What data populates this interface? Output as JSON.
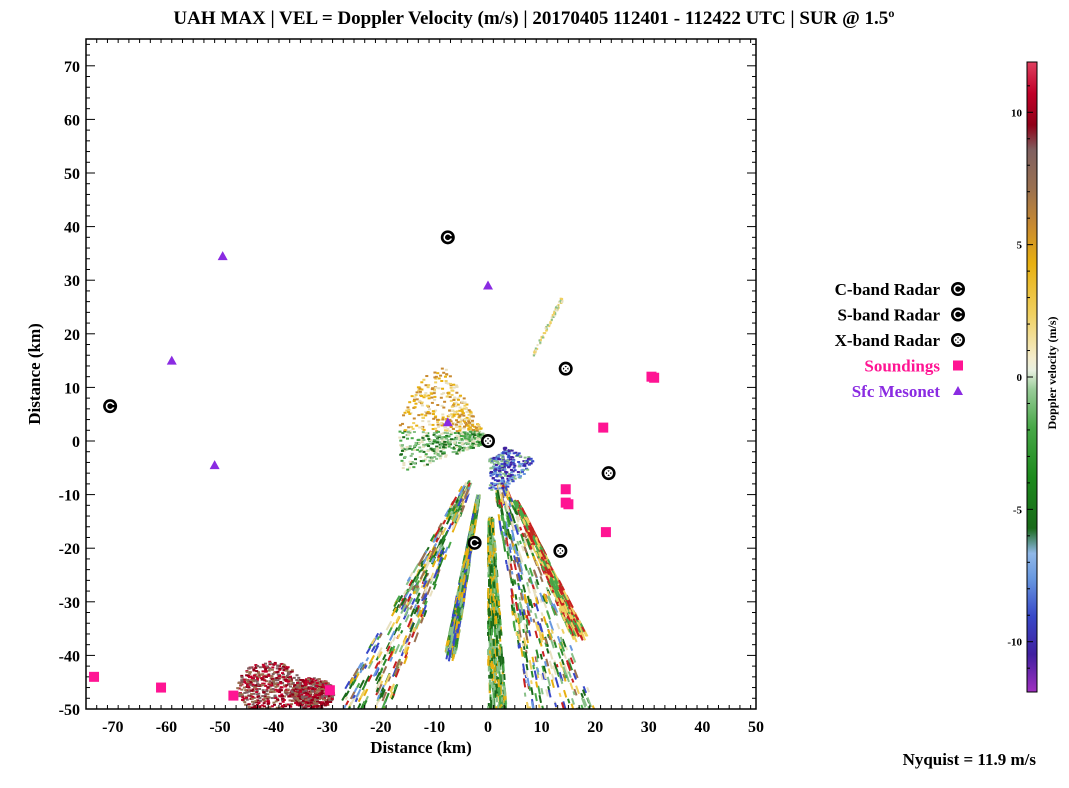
{
  "chart_data": {
    "type": "scatter",
    "title": "UAH MAX | VEL = Doppler Velocity (m/s) | 20170405 112401 - 112422 UTC | SUR @ 1.5º",
    "xlabel": "Distance (km)",
    "ylabel": "Distance (km)",
    "xlim": [
      -75,
      50
    ],
    "ylim": [
      -50,
      75
    ],
    "xticks": [
      -70,
      -60,
      -50,
      -40,
      -30,
      -20,
      -10,
      0,
      10,
      20,
      30,
      40,
      50
    ],
    "yticks": [
      -50,
      -40,
      -30,
      -20,
      -10,
      0,
      10,
      20,
      30,
      40,
      50,
      60,
      70
    ],
    "grid": false,
    "legend_position": "right",
    "series": [
      {
        "name": "C-band Radar",
        "marker": "circle-letter",
        "letter": "C",
        "color": "#000000",
        "points": [
          [
            -70.5,
            6.5
          ],
          [
            -2.5,
            -19.0
          ]
        ]
      },
      {
        "name": "S-band Radar",
        "marker": "circle-letter",
        "letter": "S",
        "color": "#000000",
        "points": [
          [
            -7.5,
            38.0
          ]
        ]
      },
      {
        "name": "X-band Radar",
        "marker": "circle-x",
        "color": "#000000",
        "points": [
          [
            0.0,
            0.0
          ],
          [
            14.5,
            13.5
          ],
          [
            22.5,
            -6.0
          ],
          [
            13.5,
            -20.5
          ]
        ]
      },
      {
        "name": "Soundings",
        "marker": "square",
        "color": "#ff1493",
        "points": [
          [
            30.5,
            12.0
          ],
          [
            31.0,
            11.8
          ],
          [
            21.5,
            2.5
          ],
          [
            14.5,
            -9.0
          ],
          [
            14.5,
            -11.5
          ],
          [
            15.0,
            -11.8
          ],
          [
            22.0,
            -17.0
          ],
          [
            -73.5,
            -44.0
          ],
          [
            -61.0,
            -46.0
          ],
          [
            -47.5,
            -47.5
          ],
          [
            -29.5,
            -46.5
          ]
        ]
      },
      {
        "name": "Sfc Mesonet",
        "marker": "triangle",
        "color": "#8a2be2",
        "points": [
          [
            -49.5,
            34.5
          ],
          [
            -59.0,
            15.0
          ],
          [
            -51.0,
            -4.5
          ],
          [
            -7.5,
            3.5
          ],
          [
            0.0,
            29.0
          ]
        ]
      }
    ],
    "colorbar": {
      "label": "Doppler velocity (m/s)",
      "range": [
        -11.9,
        11.9
      ],
      "ticks": [
        -10,
        -5,
        0,
        5,
        10
      ]
    },
    "annotation": "Nyquist = 11.9 m/s"
  }
}
